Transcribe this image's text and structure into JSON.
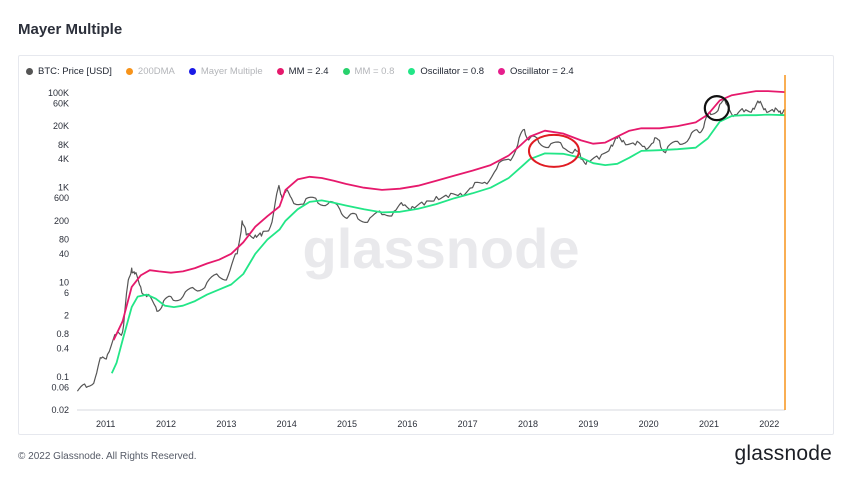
{
  "page": {
    "title": "Mayer Multiple",
    "copyright": "© 2022 Glassnode. All Rights Reserved.",
    "brand": "glassnode",
    "watermark": "glassnode"
  },
  "legend": [
    {
      "label": "BTC: Price [USD]",
      "color": "#555555",
      "active": true
    },
    {
      "label": "200DMA",
      "color": "#f7931a",
      "active": false
    },
    {
      "label": "Mayer Multiple",
      "color": "#1a1ae6",
      "active": false
    },
    {
      "label": "MM = 2.4",
      "color": "#e6196c",
      "active": true
    },
    {
      "label": "MM = 0.8",
      "color": "#28d16c",
      "active": false
    },
    {
      "label": "Oscillator = 0.8",
      "color": "#22e687",
      "active": true
    },
    {
      "label": "Oscillator = 2.4",
      "color": "#e61e8c",
      "active": true
    }
  ],
  "colors": {
    "price": "#555555",
    "upper_band": "#e6196c",
    "lower_band": "#22e687",
    "current_marker": "#f7931a",
    "circle_red": "#e01b22",
    "circle_black": "#111111"
  },
  "chart_data": {
    "type": "line",
    "title": "Mayer Multiple",
    "y_scale": "log",
    "ylim": [
      0.02,
      180000
    ],
    "xlim": [
      "2010-07-17",
      "2022-04-12"
    ],
    "y_ticks": [
      {
        "value": 100000,
        "label": "100K"
      },
      {
        "value": 60000,
        "label": "60K"
      },
      {
        "value": 20000,
        "label": "20K"
      },
      {
        "value": 8000,
        "label": "8K"
      },
      {
        "value": 4000,
        "label": "4K"
      },
      {
        "value": 1000,
        "label": "1K"
      },
      {
        "value": 600,
        "label": "600"
      },
      {
        "value": 200,
        "label": "200"
      },
      {
        "value": 80,
        "label": "80"
      },
      {
        "value": 40,
        "label": "40"
      },
      {
        "value": 10,
        "label": "10"
      },
      {
        "value": 6,
        "label": "6"
      },
      {
        "value": 2,
        "label": "2"
      },
      {
        "value": 0.8,
        "label": "0.8"
      },
      {
        "value": 0.4,
        "label": "0.4"
      },
      {
        "value": 0.1,
        "label": "0.1"
      },
      {
        "value": 0.06,
        "label": "0.06"
      },
      {
        "value": 0.02,
        "label": "0.02"
      }
    ],
    "x_ticks": [
      "2011",
      "2012",
      "2013",
      "2014",
      "2015",
      "2016",
      "2017",
      "2018",
      "2019",
      "2020",
      "2021",
      "2022"
    ],
    "series": [
      {
        "name": "BTC: Price [USD]",
        "key": "price",
        "x": [
          2010.55,
          2010.7,
          2010.85,
          2010.95,
          2011.05,
          2011.2,
          2011.3,
          2011.38,
          2011.45,
          2011.5,
          2011.6,
          2011.7,
          2011.85,
          2011.95,
          2012.1,
          2012.3,
          2012.5,
          2012.7,
          2012.9,
          2013.05,
          2013.2,
          2013.28,
          2013.35,
          2013.5,
          2013.6,
          2013.75,
          2013.88,
          2013.93,
          2014.0,
          2014.1,
          2014.3,
          2014.5,
          2014.7,
          2014.9,
          2015.05,
          2015.2,
          2015.4,
          2015.6,
          2015.8,
          2015.95,
          2016.1,
          2016.3,
          2016.5,
          2016.7,
          2016.9,
          2017.1,
          2017.3,
          2017.5,
          2017.7,
          2017.85,
          2017.96,
          2018.05,
          2018.2,
          2018.4,
          2018.6,
          2018.8,
          2018.9,
          2019.0,
          2019.2,
          2019.4,
          2019.5,
          2019.6,
          2019.8,
          2019.95,
          2020.1,
          2020.2,
          2020.3,
          2020.5,
          2020.7,
          2020.85,
          2020.95,
          2021.05,
          2021.2,
          2021.3,
          2021.45,
          2021.6,
          2021.75,
          2021.85,
          2021.95,
          2022.1,
          2022.2,
          2022.28
        ],
        "y": [
          0.05,
          0.06,
          0.1,
          0.25,
          0.3,
          0.8,
          0.9,
          8,
          20,
          15,
          8,
          5,
          3,
          3,
          5,
          5,
          7,
          10,
          13,
          14,
          40,
          200,
          100,
          100,
          95,
          150,
          1000,
          700,
          800,
          600,
          450,
          600,
          450,
          350,
          250,
          220,
          230,
          270,
          320,
          420,
          400,
          430,
          650,
          620,
          760,
          1000,
          1300,
          2500,
          4000,
          8000,
          17000,
          11000,
          9000,
          8500,
          7000,
          6500,
          4000,
          3700,
          4000,
          8000,
          11000,
          10000,
          8000,
          7500,
          9000,
          10000,
          5500,
          9500,
          11500,
          15000,
          25000,
          35000,
          58000,
          60000,
          35000,
          40000,
          48000,
          62000,
          47000,
          40000,
          42000,
          44000
        ]
      },
      {
        "name": "MM = 2.4",
        "key": "upper",
        "x": [
          2011.15,
          2011.3,
          2011.45,
          2011.6,
          2011.75,
          2011.9,
          2012.1,
          2012.3,
          2012.5,
          2012.7,
          2012.9,
          2013.1,
          2013.3,
          2013.5,
          2013.7,
          2013.9,
          2014.0,
          2014.2,
          2014.4,
          2014.6,
          2014.8,
          2015.0,
          2015.3,
          2015.6,
          2015.9,
          2016.2,
          2016.5,
          2016.8,
          2017.1,
          2017.4,
          2017.7,
          2017.9,
          2018.05,
          2018.3,
          2018.6,
          2018.9,
          2019.1,
          2019.3,
          2019.5,
          2019.7,
          2019.9,
          2020.2,
          2020.5,
          2020.8,
          2021.0,
          2021.2,
          2021.4,
          2021.6,
          2021.8,
          2022.0,
          2022.28
        ],
        "y": [
          0.6,
          1.5,
          8,
          14,
          18,
          17,
          16,
          17,
          20,
          25,
          30,
          40,
          70,
          150,
          250,
          400,
          900,
          1500,
          1700,
          1600,
          1400,
          1200,
          1000,
          900,
          950,
          1100,
          1400,
          1800,
          2300,
          3000,
          4800,
          8000,
          12000,
          16000,
          14000,
          10000,
          8500,
          9000,
          12000,
          16000,
          18000,
          18000,
          20000,
          24000,
          35000,
          70000,
          90000,
          100000,
          110000,
          110000,
          105000
        ]
      },
      {
        "name": "Oscillator = 0.8",
        "key": "lower",
        "x": [
          2011.12,
          2011.2,
          2011.3,
          2011.45,
          2011.55,
          2011.7,
          2011.85,
          2012.0,
          2012.15,
          2012.3,
          2012.5,
          2012.7,
          2012.9,
          2013.1,
          2013.3,
          2013.5,
          2013.7,
          2013.9,
          2014.0,
          2014.2,
          2014.4,
          2014.6,
          2014.8,
          2015.0,
          2015.3,
          2015.6,
          2015.9,
          2016.2,
          2016.5,
          2016.8,
          2017.1,
          2017.4,
          2017.7,
          2017.9,
          2018.05,
          2018.3,
          2018.6,
          2018.9,
          2019.1,
          2019.3,
          2019.5,
          2019.7,
          2019.9,
          2020.2,
          2020.5,
          2020.8,
          2021.0,
          2021.2,
          2021.4,
          2021.6,
          2021.8,
          2022.0,
          2022.28
        ],
        "y": [
          0.12,
          0.2,
          0.6,
          3,
          5,
          5.5,
          4.5,
          3.2,
          3,
          3.2,
          4,
          5.5,
          7,
          9,
          15,
          40,
          80,
          130,
          200,
          350,
          500,
          540,
          480,
          420,
          350,
          300,
          310,
          360,
          450,
          600,
          760,
          1000,
          1600,
          2700,
          4000,
          5300,
          5200,
          4300,
          3300,
          3000,
          3200,
          4300,
          6000,
          6200,
          6500,
          7000,
          11000,
          25000,
          33000,
          34000,
          34000,
          35000,
          34000
        ]
      }
    ]
  }
}
